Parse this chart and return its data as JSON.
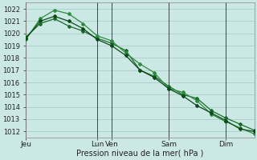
{
  "title": "",
  "xlabel": "Pression niveau de la mer( hPa )",
  "ylabel": "",
  "bg_color": "#cce8e4",
  "grid_color": "#aaccca",
  "line_color1": "#1a6b2a",
  "line_color2": "#2d8c3c",
  "line_color3": "#0d4a1a",
  "xlim": [
    0,
    96
  ],
  "ylim": [
    1011.5,
    1022.5
  ],
  "yticks": [
    1012,
    1013,
    1014,
    1015,
    1016,
    1017,
    1018,
    1019,
    1020,
    1021,
    1022
  ],
  "xtick_labels": [
    "Jeu",
    "Lun",
    "Ven",
    "Sam",
    "Dim"
  ],
  "xtick_positions": [
    0,
    30,
    36,
    60,
    84
  ],
  "vlines": [
    0,
    30,
    36,
    60,
    84
  ],
  "series1_x": [
    0,
    6,
    12,
    18,
    24,
    30,
    36,
    42,
    48,
    54,
    60,
    66,
    72,
    78,
    84,
    90,
    96
  ],
  "series1_y": [
    1019.7,
    1020.8,
    1021.2,
    1020.6,
    1020.2,
    1019.6,
    1019.2,
    1018.6,
    1017.0,
    1016.5,
    1015.7,
    1015.0,
    1014.7,
    1013.7,
    1013.1,
    1012.6,
    1012.1
  ],
  "series2_x": [
    0,
    6,
    12,
    18,
    24,
    30,
    36,
    42,
    48,
    54,
    60,
    66,
    72,
    78,
    84,
    90,
    96
  ],
  "series2_y": [
    1019.5,
    1021.2,
    1021.9,
    1021.6,
    1020.8,
    1019.8,
    1019.4,
    1018.4,
    1017.5,
    1016.8,
    1015.5,
    1015.2,
    1014.5,
    1013.4,
    1012.8,
    1012.3,
    1011.8
  ],
  "series3_x": [
    0,
    6,
    12,
    18,
    24,
    30,
    36,
    42,
    48,
    54,
    60,
    66,
    72,
    78,
    84,
    90,
    96
  ],
  "series3_y": [
    1019.6,
    1021.0,
    1021.4,
    1021.0,
    1020.4,
    1019.5,
    1019.0,
    1018.2,
    1017.0,
    1016.4,
    1015.5,
    1014.9,
    1014.1,
    1013.5,
    1012.9,
    1012.2,
    1012.0
  ]
}
